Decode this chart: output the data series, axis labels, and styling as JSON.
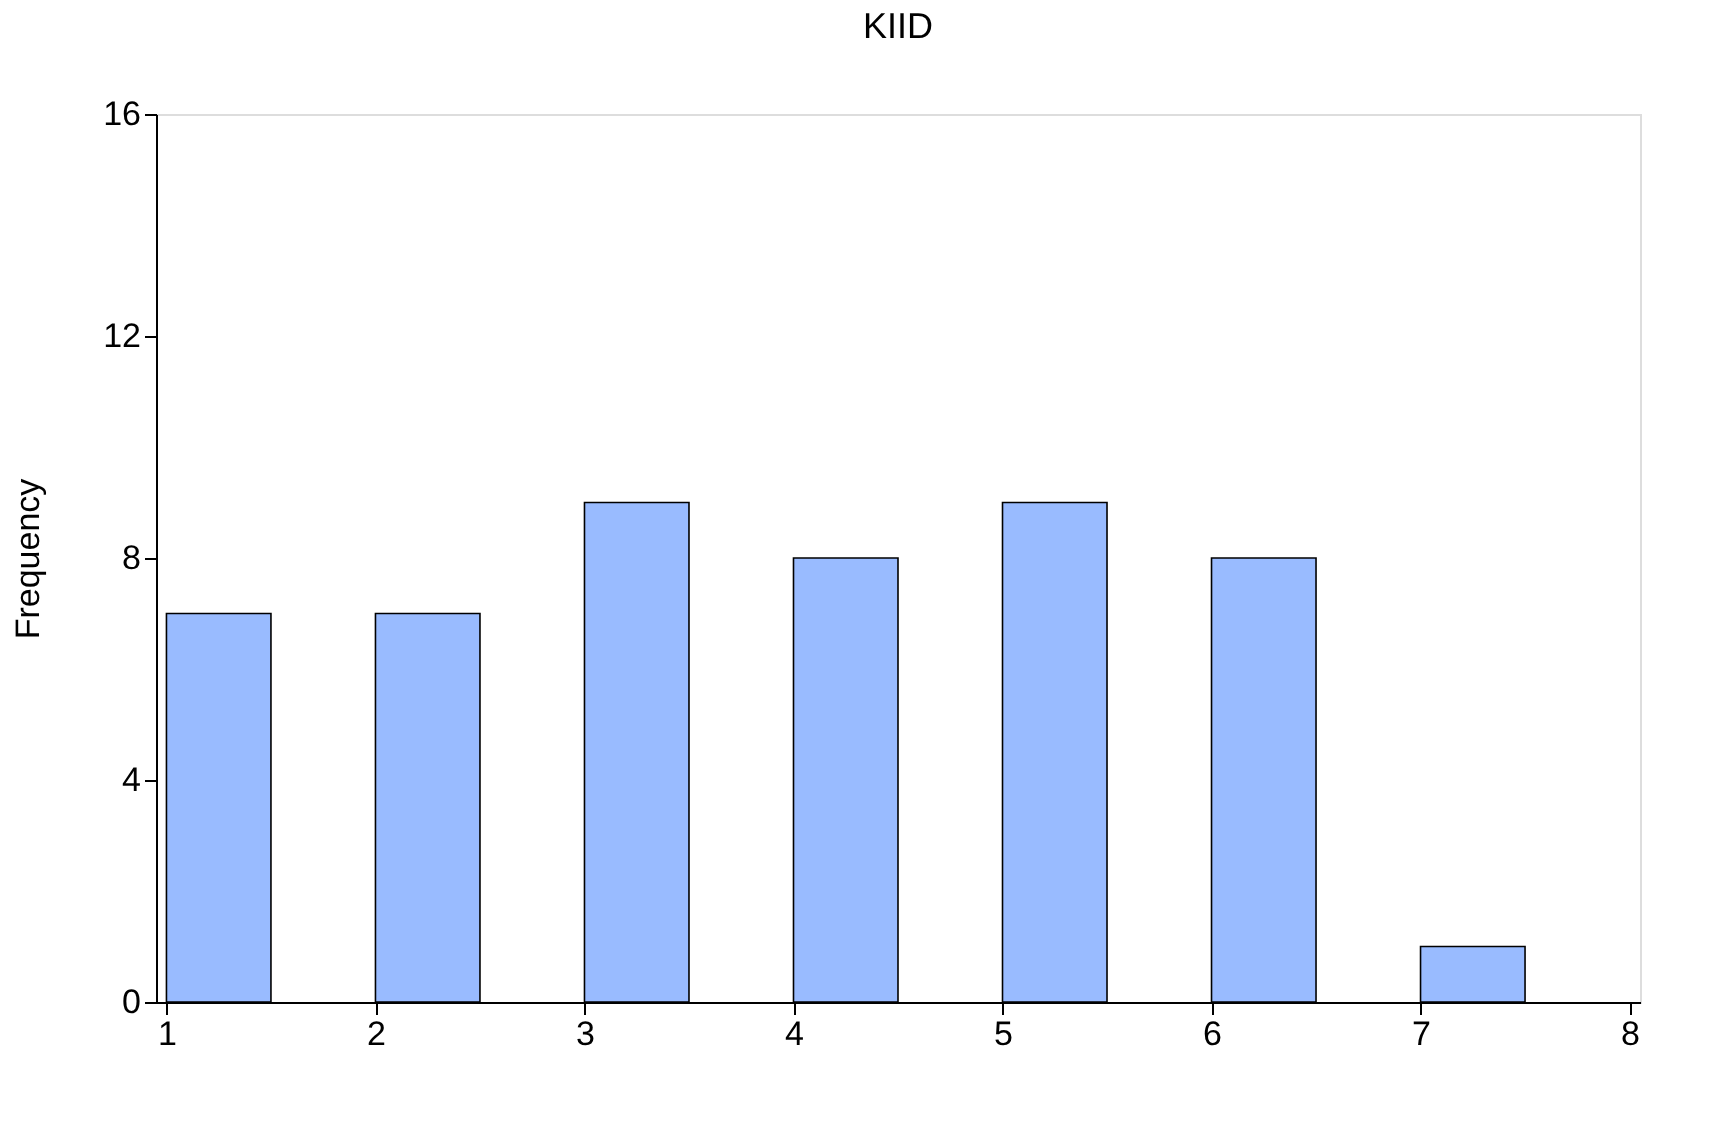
{
  "chart_data": {
    "type": "histogram",
    "title": "KIID",
    "ylabel": "Frequency",
    "bins": [
      1,
      1.5,
      2,
      2.5,
      3,
      3.5,
      4,
      4.5,
      5,
      5.5,
      6,
      6.5,
      7,
      7.5
    ],
    "values": [
      7,
      0,
      7,
      0,
      9,
      0,
      8,
      0,
      9,
      0,
      8,
      0,
      1
    ],
    "color": "#99bbff",
    "xlim": [
      0.95,
      8.05
    ],
    "xticks": [
      1,
      2,
      3,
      4,
      5,
      6,
      7,
      8
    ],
    "ylim": [
      0,
      16
    ],
    "yticks": [
      0,
      4,
      8,
      12,
      16
    ],
    "grid": false
  }
}
